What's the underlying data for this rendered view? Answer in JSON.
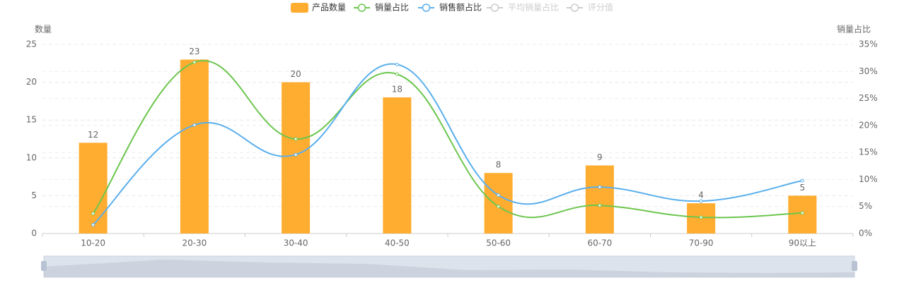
{
  "chart_data": {
    "type": "bar-line",
    "categories": [
      "10-20",
      "20-30",
      "30-40",
      "40-50",
      "50-60",
      "60-70",
      "70-90",
      "90以上"
    ],
    "series": [
      {
        "name": "产品数量",
        "type": "bar",
        "color": "#ffad30",
        "values": [
          12,
          23,
          20,
          18,
          8,
          9,
          4,
          5
        ]
      },
      {
        "name": "销量占比",
        "type": "line",
        "axis": "y2",
        "color": "#6cc64e",
        "values": [
          3.7,
          31.7,
          17.5,
          29.5,
          5.0,
          5.2,
          3.0,
          3.8
        ]
      },
      {
        "name": "销售额占比",
        "type": "line",
        "axis": "y2",
        "color": "#5aafec",
        "values": [
          1.6,
          20.1,
          14.6,
          31.3,
          7.1,
          8.6,
          6.0,
          9.8
        ]
      }
    ],
    "inactive_legend": [
      "平均销量占比",
      "评分值"
    ],
    "ylabel": "数量",
    "y2label": "销量占比",
    "ylim": [
      0,
      25
    ],
    "yticks": [
      0,
      5,
      10,
      15,
      20,
      25
    ],
    "y2lim": [
      0,
      35
    ],
    "y2ticks": [
      {
        "value": 0,
        "label": "0%"
      },
      {
        "value": 5,
        "label": "5%"
      },
      {
        "value": 10,
        "label": "10%"
      },
      {
        "value": 15,
        "label": "15%"
      },
      {
        "value": 20,
        "label": "20%"
      },
      {
        "value": 25,
        "label": "25%"
      },
      {
        "value": 30,
        "label": "30%"
      },
      {
        "value": 35,
        "label": "35%"
      }
    ],
    "grid": true
  }
}
